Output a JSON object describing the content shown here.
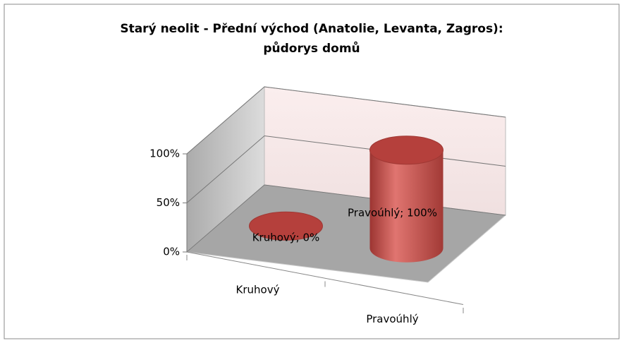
{
  "chart_data": {
    "type": "cylinder3d",
    "title": [
      "Starý neolit - Přední východ (Anatolie, Levanta, Zagros):",
      "půdorys domů"
    ],
    "categories": [
      "Kruhový",
      "Pravoúhlý"
    ],
    "values": [
      0,
      100
    ],
    "value_labels": [
      "Kruhový; 0%",
      "Pravoúhlý; 100%"
    ],
    "color": "#c0504d",
    "ylim": [
      0,
      100
    ],
    "yticks": [
      {
        "value": 0,
        "label": "0%"
      },
      {
        "value": 50,
        "label": "50%"
      },
      {
        "value": 100,
        "label": "100%"
      }
    ],
    "grid": true
  }
}
